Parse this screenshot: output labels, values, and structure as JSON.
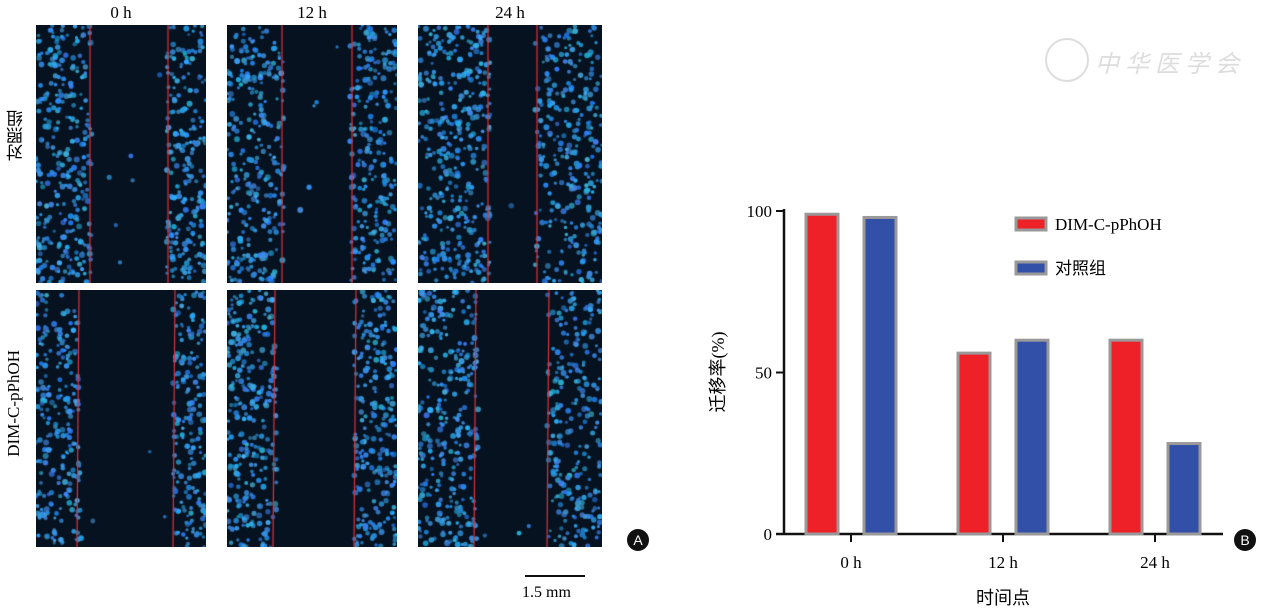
{
  "panel_a": {
    "column_labels": [
      "0 h",
      "12 h",
      "24 h"
    ],
    "row_labels": [
      "对照组",
      "DIM-C-pPhOH"
    ],
    "scale_bar_label": "1.5 mm",
    "panel_letter": "A",
    "colors": {
      "cell_stain": "#2a8fe0",
      "background": "#06121f",
      "wound_edge": "#e0303a"
    }
  },
  "panel_b_letter": "B",
  "watermark": {
    "text": "中华医学会"
  },
  "chart_data": {
    "type": "bar",
    "categories": [
      "0 h",
      "12 h",
      "24 h"
    ],
    "series": [
      {
        "name": "DIM-C-pPhOH",
        "values": [
          99,
          56,
          60
        ],
        "color": "#ee2128"
      },
      {
        "name": "对照组",
        "values": [
          98,
          60,
          28
        ],
        "color": "#3250a8"
      }
    ],
    "xlabel": "时间点",
    "ylabel": "迁移率(%)",
    "ylim": [
      0,
      100
    ],
    "yticks": [
      0,
      50,
      100
    ],
    "grid": false,
    "legend_position": "top-right"
  }
}
